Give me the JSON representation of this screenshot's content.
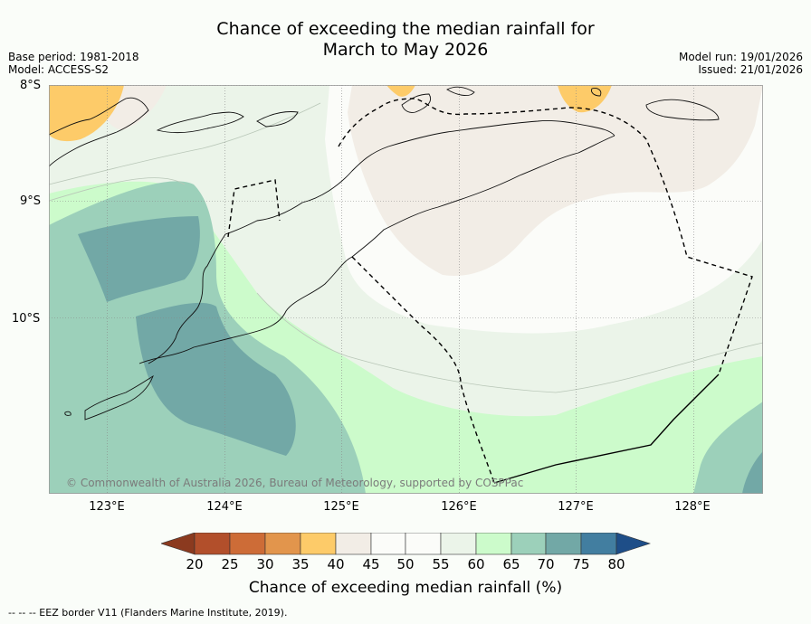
{
  "title": {
    "line1": "Chance of exceeding the median rainfall for",
    "line2": "March to May 2026"
  },
  "meta": {
    "base_period": "Base period: 1981-2018",
    "model": "Model: ACCESS-S2",
    "model_run": "Model run: 19/01/2026",
    "issued": "Issued: 21/01/2026"
  },
  "map": {
    "lat_labels": [
      "8°S",
      "9°S",
      "10°S"
    ],
    "lon_labels": [
      "123°E",
      "124°E",
      "125°E",
      "126°E",
      "127°E",
      "128°E"
    ],
    "copyright": "© Commonwealth of Australia 2026, Bureau of Meteorology, supported by COSPPac"
  },
  "colorbar": {
    "ticks": [
      "20",
      "25",
      "30",
      "35",
      "40",
      "45",
      "50",
      "55",
      "60",
      "65",
      "70",
      "75",
      "80"
    ],
    "colors": {
      "below_20": "#8b3a1f",
      "20_25": "#b24f2b",
      "25_30": "#cd6c37",
      "30_35": "#e2954c",
      "35_40": "#fdcb69",
      "40_45": "#f2ede6",
      "45_50": "#fbfcf9",
      "50_55": "#fbfcf9",
      "55_60": "#ebf4e9",
      "60_65": "#ccfbcb",
      "65_70": "#9cd0ba",
      "70_75": "#72a8a6",
      "75_80": "#427ea0",
      "above_80": "#1e4e88"
    },
    "label": "Chance of exceeding median rainfall (%)"
  },
  "footer": {
    "legend_line": "--  --  -- EEZ border V11 (Flanders Marine Institute, 2019)."
  }
}
